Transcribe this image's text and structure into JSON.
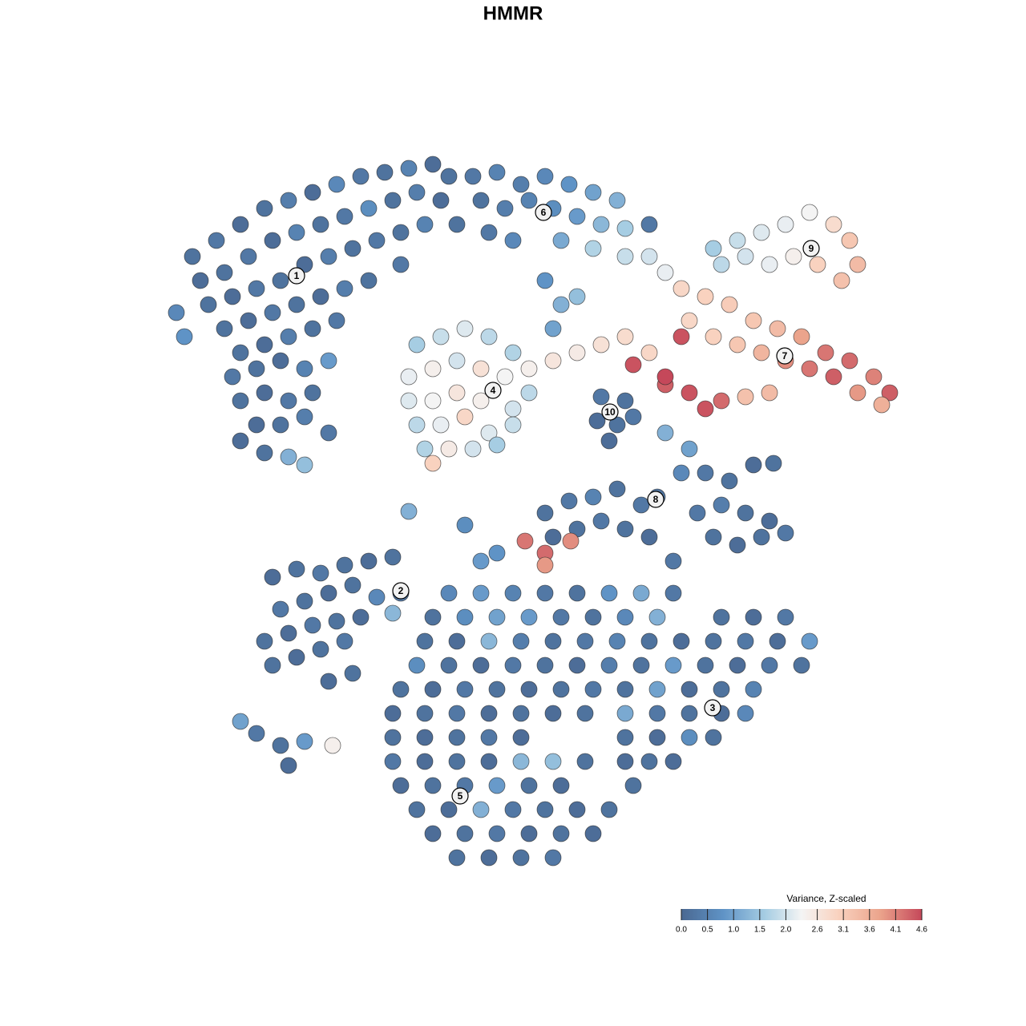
{
  "chart_data": {
    "type": "scatter",
    "title": "HMMR",
    "xlim": [
      0,
      1280
    ],
    "ylim": [
      1280,
      0
    ],
    "x": [
      240,
      270,
      300,
      330,
      360,
      390,
      420,
      450,
      480,
      510,
      540,
      560,
      250,
      280,
      310,
      340,
      370,
      400,
      430,
      460,
      490,
      520,
      550,
      220,
      260,
      290,
      320,
      350,
      380,
      410,
      440,
      470,
      500,
      530,
      230,
      280,
      310,
      340,
      370,
      400,
      430,
      460,
      500,
      300,
      330,
      360,
      390,
      420,
      290,
      320,
      350,
      380,
      410,
      300,
      330,
      360,
      390,
      320,
      350,
      380,
      410,
      330,
      360,
      380,
      300,
      590,
      620,
      650,
      680,
      710,
      740,
      770,
      600,
      630,
      660,
      690,
      720,
      750,
      780,
      810,
      570,
      610,
      640,
      700,
      740,
      780,
      810,
      830,
      890,
      920,
      950,
      980,
      1010,
      1040,
      1060,
      1070,
      1050,
      1020,
      990,
      960,
      930,
      900,
      850,
      880,
      910,
      940,
      970,
      1000,
      1030,
      1060,
      1090,
      1110,
      1100,
      1070,
      1040,
      1010,
      980,
      950,
      920,
      890,
      860,
      860,
      880,
      900,
      930,
      960,
      830,
      850,
      660,
      690,
      720,
      750,
      780,
      810,
      790,
      830,
      700,
      690,
      720,
      680,
      520,
      550,
      580,
      610,
      640,
      510,
      540,
      570,
      600,
      630,
      660,
      510,
      540,
      570,
      600,
      640,
      520,
      550,
      580,
      610,
      640,
      530,
      560,
      590,
      620,
      540,
      750,
      780,
      745,
      770,
      790,
      760,
      830,
      860,
      850,
      880,
      910,
      940,
      965,
      900,
      930,
      960,
      980,
      890,
      920,
      950,
      870,
      820,
      680,
      710,
      740,
      770,
      800,
      690,
      720,
      750,
      780,
      810,
      840,
      655,
      680,
      712,
      680,
      620,
      600,
      580,
      510,
      340,
      370,
      400,
      430,
      460,
      490,
      350,
      380,
      410,
      440,
      470,
      500,
      330,
      360,
      390,
      420,
      450,
      490,
      340,
      370,
      400,
      430,
      410,
      440,
      300,
      320,
      350,
      360,
      380,
      415,
      560,
      600,
      640,
      680,
      720,
      760,
      800,
      840,
      540,
      580,
      620,
      660,
      700,
      740,
      780,
      820,
      900,
      940,
      980,
      530,
      570,
      610,
      650,
      690,
      730,
      770,
      810,
      850,
      890,
      930,
      970,
      1010,
      520,
      560,
      600,
      640,
      680,
      720,
      760,
      800,
      840,
      880,
      920,
      960,
      1000,
      500,
      540,
      580,
      620,
      660,
      700,
      740,
      780,
      820,
      860,
      900,
      940,
      490,
      530,
      570,
      610,
      650,
      690,
      730,
      780,
      820,
      860,
      900,
      930,
      490,
      530,
      570,
      610,
      650,
      780,
      820,
      860,
      890,
      490,
      530,
      570,
      610,
      650,
      690,
      730,
      780,
      810,
      840,
      500,
      540,
      580,
      620,
      660,
      700,
      790,
      520,
      560,
      600,
      640,
      680,
      720,
      760,
      540,
      580,
      620,
      660,
      700,
      740,
      570,
      610,
      650,
      690
    ],
    "y": [
      320,
      300,
      280,
      260,
      250,
      240,
      230,
      220,
      215,
      210,
      205,
      220,
      350,
      340,
      320,
      300,
      290,
      280,
      270,
      260,
      250,
      240,
      250,
      390,
      380,
      370,
      360,
      350,
      330,
      320,
      310,
      300,
      290,
      280,
      420,
      410,
      400,
      390,
      380,
      370,
      360,
      350,
      330,
      440,
      430,
      420,
      410,
      400,
      470,
      460,
      450,
      460,
      450,
      500,
      490,
      500,
      490,
      530,
      530,
      520,
      540,
      565,
      570,
      580,
      550,
      220,
      215,
      230,
      220,
      230,
      240,
      250,
      250,
      260,
      250,
      260,
      270,
      280,
      285,
      280,
      280,
      290,
      300,
      300,
      310,
      320,
      320,
      340,
      310,
      300,
      290,
      280,
      265,
      280,
      300,
      330,
      350,
      330,
      320,
      330,
      320,
      330,
      360,
      370,
      380,
      400,
      410,
      420,
      440,
      450,
      470,
      490,
      505,
      490,
      470,
      460,
      450,
      440,
      430,
      420,
      400,
      490,
      510,
      500,
      495,
      490,
      480,
      420,
      460,
      450,
      440,
      430,
      420,
      440,
      455,
      470,
      380,
      410,
      370,
      350,
      430,
      420,
      410,
      420,
      440,
      470,
      460,
      450,
      460,
      470,
      490,
      500,
      500,
      490,
      500,
      510,
      530,
      530,
      520,
      540,
      530,
      560,
      560,
      560,
      555,
      578,
      495,
      500,
      525,
      530,
      520,
      550,
      540,
      560,
      590,
      590,
      600,
      580,
      578,
      630,
      640,
      650,
      665,
      670,
      680,
      670,
      640,
      620,
      640,
      625,
      620,
      610,
      630,
      670,
      660,
      650,
      660,
      670,
      700,
      675,
      690,
      675,
      705,
      690,
      700,
      655,
      638,
      720,
      710,
      715,
      705,
      700,
      695,
      760,
      750,
      740,
      730,
      745,
      740,
      800,
      790,
      780,
      775,
      770,
      765,
      830,
      820,
      810,
      800,
      850,
      840,
      900,
      915,
      930,
      955,
      925,
      930,
      740,
      740,
      740,
      740,
      740,
      740,
      740,
      740,
      770,
      770,
      770,
      770,
      770,
      770,
      770,
      770,
      770,
      770,
      770,
      800,
      800,
      800,
      800,
      800,
      800,
      800,
      800,
      800,
      800,
      800,
      800,
      800,
      830,
      830,
      830,
      830,
      830,
      830,
      830,
      830,
      830,
      830,
      830,
      830,
      830,
      860,
      860,
      860,
      860,
      860,
      860,
      860,
      860,
      860,
      860,
      860,
      860,
      890,
      890,
      890,
      890,
      890,
      890,
      890,
      890,
      890,
      890,
      890,
      890,
      920,
      920,
      920,
      920,
      920,
      920,
      920,
      920,
      920,
      950,
      950,
      950,
      950,
      950,
      950,
      950,
      950,
      950,
      950,
      980,
      980,
      980,
      980,
      980,
      980,
      980,
      1010,
      1010,
      1010,
      1010,
      1010,
      1010,
      1010,
      1040,
      1040,
      1040,
      1040,
      1040,
      1040,
      1070,
      1070,
      1070,
      1070
    ],
    "values": [
      0.2,
      0.3,
      0.1,
      0.2,
      0.4,
      0.1,
      0.6,
      0.3,
      0.2,
      0.5,
      0.1,
      0.2,
      0.1,
      0.2,
      0.3,
      0.1,
      0.5,
      0.2,
      0.3,
      0.7,
      0.2,
      0.4,
      0.1,
      0.6,
      0.2,
      0.1,
      0.3,
      0.2,
      0.1,
      0.4,
      0.2,
      0.3,
      0.2,
      0.5,
      0.8,
      0.2,
      0.1,
      0.3,
      0.2,
      0.1,
      0.4,
      0.2,
      0.3,
      0.2,
      0.1,
      0.4,
      0.2,
      0.3,
      0.3,
      0.2,
      0.1,
      0.5,
      0.9,
      0.2,
      0.1,
      0.3,
      0.2,
      0.1,
      0.2,
      0.4,
      0.3,
      0.2,
      1.2,
      1.4,
      0.1,
      0.3,
      0.5,
      0.4,
      0.6,
      0.8,
      1.0,
      1.2,
      0.2,
      0.4,
      0.5,
      0.7,
      0.9,
      1.3,
      1.6,
      0.3,
      0.2,
      0.3,
      0.6,
      1.1,
      1.7,
      1.9,
      2.0,
      2.2,
      1.6,
      1.9,
      2.1,
      2.2,
      2.3,
      2.8,
      3.2,
      3.4,
      3.3,
      3.0,
      2.4,
      2.2,
      2.0,
      1.8,
      2.9,
      3.0,
      3.1,
      3.2,
      3.4,
      3.8,
      4.2,
      4.3,
      4.1,
      4.4,
      3.6,
      3.9,
      4.4,
      4.2,
      4.0,
      3.5,
      3.2,
      3.0,
      2.9,
      4.5,
      4.5,
      4.3,
      3.3,
      3.4,
      4.4,
      4.5,
      2.4,
      2.6,
      2.5,
      2.7,
      2.8,
      2.9,
      4.5,
      4.6,
      1.2,
      1.0,
      1.4,
      0.8,
      1.6,
      1.9,
      2.1,
      1.8,
      1.7,
      2.2,
      2.4,
      2.0,
      2.7,
      2.3,
      1.8,
      2.1,
      2.3,
      2.6,
      2.4,
      2.0,
      1.8,
      2.2,
      2.9,
      2.1,
      1.9,
      1.7,
      2.5,
      2.0,
      1.6,
      3.0,
      0.3,
      0.2,
      0.1,
      0.2,
      0.3,
      0.1,
      1.2,
      1.0,
      0.6,
      0.3,
      0.2,
      0.1,
      0.2,
      0.4,
      0.2,
      0.1,
      0.3,
      0.2,
      0.1,
      0.2,
      0.3,
      0.2,
      0.2,
      0.3,
      0.5,
      0.2,
      0.3,
      0.1,
      0.2,
      0.3,
      0.2,
      0.1,
      0.3,
      4.2,
      4.3,
      4.0,
      3.9,
      0.8,
      0.9,
      0.7,
      1.2,
      0.1,
      0.2,
      0.3,
      0.2,
      0.1,
      0.2,
      0.3,
      0.2,
      0.1,
      0.2,
      0.6,
      0.3,
      0.2,
      0.1,
      0.3,
      0.2,
      0.1,
      1.3,
      0.2,
      0.1,
      0.2,
      0.3,
      0.1,
      0.2,
      1.0,
      0.3,
      0.2,
      0.1,
      0.9,
      2.4,
      0.6,
      0.9,
      0.5,
      0.3,
      0.2,
      0.8,
      1.1,
      0.3,
      0.2,
      0.7,
      1.0,
      0.9,
      0.3,
      0.2,
      0.6,
      1.2,
      0.2,
      0.1,
      0.3,
      0.2,
      0.1,
      1.3,
      0.4,
      0.2,
      0.3,
      0.5,
      0.2,
      0.1,
      0.2,
      0.3,
      0.1,
      0.9,
      0.7,
      0.2,
      0.1,
      0.3,
      0.2,
      0.1,
      0.4,
      0.2,
      0.9,
      0.2,
      0.1,
      0.3,
      0.2,
      0.2,
      0.1,
      0.3,
      0.2,
      0.1,
      0.2,
      0.3,
      0.2,
      1.0,
      0.1,
      0.2,
      0.5,
      0.1,
      0.2,
      0.3,
      0.1,
      0.2,
      0.1,
      0.2,
      1.1,
      0.3,
      0.2,
      0.1,
      0.6,
      0.2,
      0.1,
      0.2,
      0.3,
      0.1,
      0.2,
      0.1,
      0.7,
      0.2,
      0.3,
      0.1,
      0.2,
      0.1,
      1.3,
      1.4,
      0.2,
      0.1,
      0.2,
      0.1,
      0.1,
      0.2,
      0.3,
      0.9,
      0.2,
      0.1,
      0.2,
      0.2,
      0.1,
      1.2,
      0.3,
      0.2,
      0.1,
      0.2,
      0.1,
      0.2,
      0.3,
      0.1,
      0.2,
      0.1,
      0.2,
      0.1,
      0.2,
      0.3
    ],
    "cluster_labels": [
      {
        "text": "1",
        "x": 370,
        "y": 344
      },
      {
        "text": "2",
        "x": 500,
        "y": 737
      },
      {
        "text": "3",
        "x": 889,
        "y": 883
      },
      {
        "text": "4",
        "x": 615,
        "y": 487
      },
      {
        "text": "5",
        "x": 574,
        "y": 993
      },
      {
        "text": "6",
        "x": 678,
        "y": 265
      },
      {
        "text": "7",
        "x": 979,
        "y": 444
      },
      {
        "text": "8",
        "x": 818,
        "y": 623
      },
      {
        "text": "9",
        "x": 1012,
        "y": 310
      },
      {
        "text": "10",
        "x": 761,
        "y": 514
      }
    ],
    "colorbar": {
      "title": "Variance, Z-scaled",
      "range": [
        0,
        4.6
      ],
      "ticks": [
        {
          "value": 0,
          "label": "0.0"
        },
        0.5,
        {
          "value": 1,
          "label": "1.0"
        },
        1.5,
        {
          "value": 2,
          "label": "2.0"
        },
        2.6,
        3.1,
        3.6,
        4.1,
        4.6
      ],
      "colorscale": [
        [
          0,
          "#4a6891"
        ],
        [
          0.8,
          "#5f93c6"
        ],
        [
          1.6,
          "#a6cde3"
        ],
        [
          2.3,
          "#f4f4f4"
        ],
        [
          3.0,
          "#f9d2bf"
        ],
        [
          3.8,
          "#eba48c"
        ],
        [
          4.6,
          "#c5485a"
        ]
      ]
    }
  }
}
